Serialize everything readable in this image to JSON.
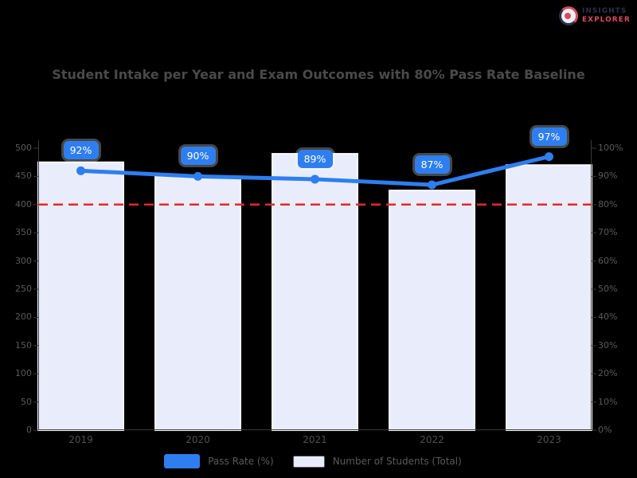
{
  "logo": {
    "line1": "INSIGHTS",
    "line2": "EXPLORER",
    "navy": "#2b3147",
    "red": "#d94a5e"
  },
  "title": {
    "text": "Student Intake per Year and Exam Outcomes with 80% Pass Rate Baseline",
    "color": "#4a4a4a"
  },
  "chart_data": {
    "type": "bar",
    "subtype": "bar-line-combo",
    "categories": [
      "2019",
      "2020",
      "2021",
      "2022",
      "2023"
    ],
    "series": [
      {
        "name": "Number of Students (Total)",
        "type": "bar",
        "axis": "left",
        "values": [
          475,
          450,
          490,
          425,
          470
        ],
        "fill": "#e9edfb",
        "border": "#f8f9ff"
      },
      {
        "name": "Pass Rate (%)",
        "type": "line",
        "axis": "right",
        "values": [
          92,
          90,
          89,
          87,
          97
        ],
        "point_labels": [
          "92%",
          "90%",
          "89%",
          "87%",
          "97%"
        ],
        "color": "#2e7ef0"
      }
    ],
    "target_line": {
      "value": 80,
      "axis": "right",
      "style": "dashed",
      "color": "#e8262a"
    },
    "left_axis": {
      "min": 0,
      "max": 500,
      "step": 50,
      "ticks": [
        "500",
        "450",
        "400",
        "350",
        "300",
        "250",
        "200",
        "150",
        "100",
        "50",
        "0"
      ]
    },
    "right_axis": {
      "min": 0,
      "max": 100,
      "step": 10,
      "ticks": [
        "100%",
        "90%",
        "80%",
        "70%",
        "60%",
        "50%",
        "40%",
        "30%",
        "20%",
        "10%",
        "0%"
      ]
    },
    "grid": false,
    "legend_position": "bottom",
    "background": "#000000",
    "spine_color": "#3a3a3a"
  },
  "legend": {
    "items": [
      {
        "label": "Pass Rate (%)",
        "swatch": "#2e7ef0"
      },
      {
        "label": "Number of Students (Total)",
        "swatch": "#e9edfb",
        "swatch_border": "#55565f"
      }
    ]
  },
  "data_label_style": {
    "bg": "#2e7ef0",
    "text_color": "#ffffff"
  }
}
